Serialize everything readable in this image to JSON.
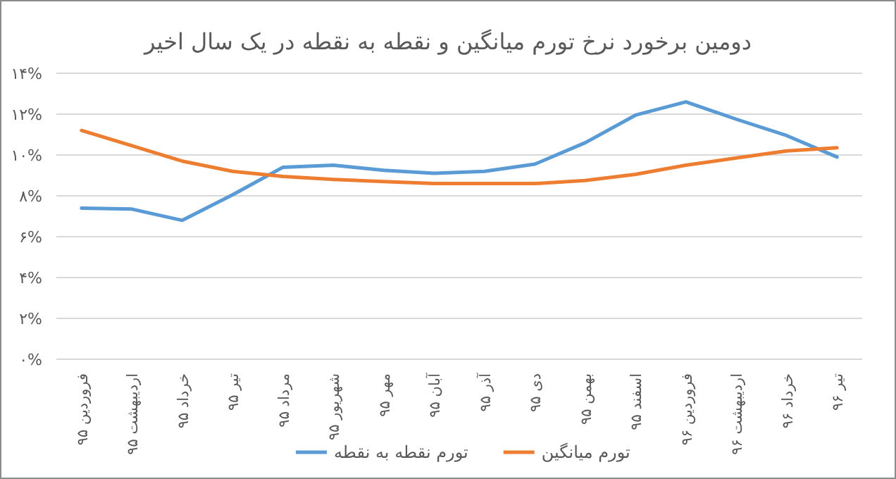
{
  "chart_data": {
    "type": "line",
    "title": "دومین برخورد نرخ تورم میانگین و نقطه به نقطه در یک سال اخیر",
    "categories": [
      "فروردین ۹۵",
      "اردیبهشت ۹۵",
      "خرداد ۹۵",
      "تیر ۹۵",
      "مرداد ۹۵",
      "شهریور ۹۵",
      "مهر ۹۵",
      "آبان ۹۵",
      "آذر ۹۵",
      "دی ۹۵",
      "بهمن ۹۵",
      "اسفند ۹۵",
      "فروردین ۹۶",
      "اردیبهشت ۹۶",
      "خرداد ۹۶",
      "تیر ۹۶"
    ],
    "series": [
      {
        "name": "تورم نقطه به نقطه",
        "color": "#5b9bd5",
        "values": [
          7.4,
          7.35,
          6.8,
          8.05,
          9.4,
          9.5,
          9.25,
          9.1,
          9.2,
          9.55,
          10.6,
          11.95,
          12.6,
          11.75,
          10.95,
          9.9
        ]
      },
      {
        "name": "تورم میانگین",
        "color": "#ed7d31",
        "values": [
          11.2,
          10.45,
          9.7,
          9.2,
          8.95,
          8.8,
          8.7,
          8.6,
          8.6,
          8.6,
          8.75,
          9.05,
          9.5,
          9.85,
          10.2,
          10.35
        ]
      }
    ],
    "ylim": [
      0,
      14
    ],
    "yticks": [
      {
        "value": 0,
        "label": "۰%"
      },
      {
        "value": 2,
        "label": "۲%"
      },
      {
        "value": 4,
        "label": "۴%"
      },
      {
        "value": 6,
        "label": "۶%"
      },
      {
        "value": 8,
        "label": "۸%"
      },
      {
        "value": 10,
        "label": "۱۰%"
      },
      {
        "value": 12,
        "label": "۱۲%"
      },
      {
        "value": 14,
        "label": "۱۴%"
      }
    ],
    "grid": "y",
    "legend": "bottom"
  }
}
